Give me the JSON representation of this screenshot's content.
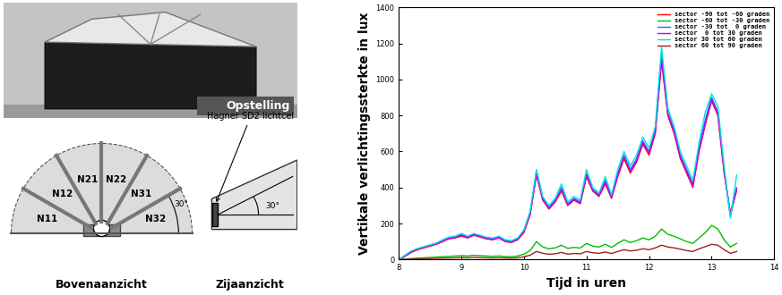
{
  "chart_data": {
    "type": "line",
    "x_label": "Tijd in uren",
    "y_label": "Vertikale verlichtingssterkte in lux",
    "x": [
      8.0,
      8.1,
      8.2,
      8.3,
      8.4,
      8.5,
      8.6,
      8.7,
      8.8,
      8.9,
      9.0,
      9.1,
      9.2,
      9.3,
      9.4,
      9.5,
      9.6,
      9.7,
      9.8,
      9.9,
      10.0,
      10.1,
      10.2,
      10.3,
      10.4,
      10.5,
      10.6,
      10.7,
      10.8,
      10.9,
      11.0,
      11.1,
      11.2,
      11.3,
      11.4,
      11.5,
      11.6,
      11.7,
      11.8,
      11.9,
      12.0,
      12.1,
      12.2,
      12.3,
      12.4,
      12.5,
      12.6,
      12.7,
      12.8,
      12.9,
      13.0,
      13.1,
      13.2,
      13.3,
      13.4
    ],
    "series": [
      {
        "name": "sector -90 tot -60 graden",
        "color": "#ff0000",
        "values": [
          0,
          20,
          40,
          55,
          65,
          75,
          85,
          100,
          115,
          120,
          130,
          120,
          135,
          125,
          115,
          110,
          120,
          100,
          95,
          110,
          150,
          250,
          470,
          330,
          280,
          320,
          380,
          300,
          330,
          310,
          460,
          380,
          350,
          420,
          340,
          460,
          560,
          480,
          540,
          640,
          580,
          700,
          1100,
          800,
          700,
          560,
          480,
          400,
          600,
          750,
          880,
          800,
          480,
          260,
          380
        ]
      },
      {
        "name": "sector -60 tot -30 graden",
        "color": "#00c000",
        "values": [
          0,
          3,
          6,
          8,
          10,
          12,
          14,
          16,
          18,
          20,
          22,
          20,
          24,
          22,
          20,
          18,
          20,
          17,
          16,
          20,
          30,
          50,
          100,
          70,
          60,
          65,
          80,
          62,
          68,
          64,
          90,
          75,
          70,
          85,
          68,
          90,
          110,
          95,
          105,
          120,
          110,
          130,
          170,
          140,
          130,
          115,
          100,
          90,
          120,
          150,
          190,
          170,
          110,
          70,
          90
        ]
      },
      {
        "name": "sector -30 tot  0 graden",
        "color": "#0080ff",
        "values": [
          0,
          22,
          45,
          60,
          70,
          80,
          90,
          105,
          120,
          125,
          140,
          125,
          140,
          130,
          120,
          115,
          125,
          105,
          100,
          115,
          160,
          260,
          490,
          340,
          290,
          330,
          400,
          310,
          340,
          320,
          480,
          390,
          360,
          440,
          350,
          480,
          580,
          500,
          560,
          660,
          600,
          720,
          1150,
          820,
          720,
          580,
          500,
          420,
          620,
          780,
          900,
          820,
          500,
          240,
          400
        ]
      },
      {
        "name": "sector  0 tot 30 graden",
        "color": "#c000ff",
        "values": [
          0,
          18,
          42,
          58,
          68,
          78,
          88,
          102,
          118,
          122,
          135,
          122,
          138,
          128,
          118,
          112,
          122,
          102,
          98,
          112,
          155,
          255,
          480,
          335,
          285,
          325,
          390,
          305,
          335,
          315,
          470,
          385,
          355,
          430,
          345,
          470,
          570,
          490,
          550,
          650,
          590,
          710,
          1120,
          810,
          710,
          570,
          490,
          410,
          610,
          760,
          890,
          810,
          490,
          250,
          390
        ]
      },
      {
        "name": "sector 30 tot 60 graden",
        "color": "#00e0e0",
        "values": [
          0,
          25,
          48,
          62,
          72,
          82,
          92,
          110,
          125,
          130,
          145,
          130,
          145,
          135,
          125,
          120,
          130,
          110,
          105,
          120,
          165,
          270,
          500,
          350,
          300,
          340,
          420,
          320,
          350,
          330,
          500,
          400,
          370,
          460,
          360,
          500,
          600,
          520,
          580,
          680,
          620,
          740,
          1180,
          840,
          740,
          600,
          520,
          440,
          650,
          820,
          920,
          850,
          520,
          230,
          470
        ]
      },
      {
        "name": "sector 60 tot 90 graden",
        "color": "#a02020",
        "values": [
          0,
          1,
          3,
          4,
          5,
          6,
          7,
          8,
          9,
          10,
          11,
          10,
          12,
          11,
          10,
          9,
          10,
          9,
          8,
          10,
          15,
          25,
          45,
          35,
          30,
          32,
          40,
          30,
          34,
          32,
          45,
          38,
          35,
          42,
          34,
          45,
          55,
          48,
          52,
          60,
          55,
          65,
          80,
          70,
          65,
          58,
          50,
          45,
          60,
          72,
          85,
          80,
          55,
          35,
          45
        ]
      }
    ],
    "xlim": [
      8,
      14
    ],
    "xticks": [
      8,
      9,
      10,
      11,
      12,
      13,
      14
    ],
    "ylim": [
      0,
      1400
    ],
    "yticks": [
      0,
      200,
      400,
      600,
      800,
      1000,
      1200,
      1400
    ],
    "legend": "upper right",
    "grid": false
  },
  "photo": {
    "label": "Opstelling"
  },
  "top_view": {
    "title": "Bovenaanzicht",
    "sectors": [
      "N11",
      "N12",
      "N21",
      "N22",
      "N31",
      "N32"
    ],
    "angle_label": "30°"
  },
  "side_view": {
    "title": "Zijaanzicht",
    "sensor_label": "Hagner SD2 lichtcel",
    "angle_label": "30°"
  }
}
